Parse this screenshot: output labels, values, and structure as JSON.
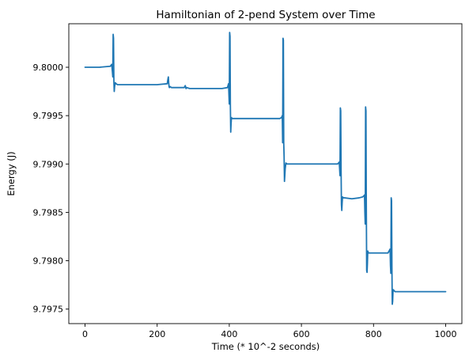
{
  "chart_data": {
    "type": "line",
    "title": "Hamiltonian of 2-pend System over Time",
    "xlabel": "Time (* 10^-2 seconds)",
    "ylabel": "Energy (J)",
    "xlim": [
      -45,
      1045
    ],
    "ylim": [
      9.79735,
      9.80045
    ],
    "x_ticks": [
      0,
      200,
      400,
      600,
      800,
      1000
    ],
    "x_tick_labels": [
      "0",
      "200",
      "400",
      "600",
      "800",
      "1000"
    ],
    "y_ticks": [
      9.7975,
      9.798,
      9.7985,
      9.799,
      9.7995,
      9.8
    ],
    "y_tick_labels": [
      "9.7975",
      "9.7980",
      "9.7985",
      "9.7990",
      "9.7995",
      "9.8000"
    ],
    "grid": false,
    "colors": {
      "line": "#1f77b4",
      "axes": "#000000",
      "background": "#ffffff"
    },
    "series": [
      {
        "color": "#1f77b4",
        "x": [
          0,
          40,
          70,
          74,
          76,
          77,
          78,
          79,
          80,
          81,
          82,
          84,
          86,
          90,
          100,
          150,
          200,
          228,
          230,
          231,
          232,
          233,
          234,
          236,
          240,
          260,
          275,
          278,
          280,
          282,
          290,
          320,
          380,
          395,
          398,
          400,
          401,
          402,
          403,
          404,
          405,
          406,
          408,
          412,
          420,
          480,
          540,
          545,
          547,
          548,
          549,
          550,
          551,
          552,
          553,
          554,
          555,
          557,
          560,
          570,
          600,
          660,
          700,
          703,
          705,
          706,
          707,
          708,
          709,
          710,
          711,
          712,
          713,
          714,
          716,
          720,
          740,
          760,
          770,
          773,
          775,
          776,
          777,
          778,
          779,
          780,
          781,
          782,
          783,
          784,
          786,
          790,
          810,
          830,
          840,
          843,
          846,
          847,
          848,
          849,
          850,
          851,
          852,
          853,
          854,
          855,
          857,
          860,
          880,
          920,
          960,
          1000
        ],
        "y": [
          9.8,
          9.8,
          9.80001,
          9.80003,
          9.79995,
          9.7999,
          9.80034,
          9.8003,
          9.79985,
          9.79975,
          9.7998,
          9.79984,
          9.79983,
          9.79982,
          9.79982,
          9.79982,
          9.79982,
          9.79983,
          9.79988,
          9.7999,
          9.79984,
          9.7998,
          9.79979,
          9.7998,
          9.79979,
          9.79979,
          9.79979,
          9.79981,
          9.79978,
          9.79979,
          9.79978,
          9.79978,
          9.79978,
          9.79979,
          9.79983,
          9.79962,
          9.80036,
          9.80032,
          9.79961,
          9.79933,
          9.79942,
          9.79948,
          9.79947,
          9.79947,
          9.79947,
          9.79947,
          9.79947,
          9.79948,
          9.7995,
          9.79922,
          9.8003,
          9.80028,
          9.79922,
          9.79908,
          9.79882,
          9.79888,
          9.79895,
          9.79901,
          9.799,
          9.799,
          9.799,
          9.799,
          9.799,
          9.79901,
          9.79902,
          9.79895,
          9.79888,
          9.79958,
          9.79955,
          9.79895,
          9.79858,
          9.79852,
          9.7986,
          9.79866,
          9.79865,
          9.79865,
          9.79864,
          9.79865,
          9.79866,
          9.79867,
          9.79868,
          9.7985,
          9.79838,
          9.79959,
          9.79955,
          9.79855,
          9.7979,
          9.79788,
          9.79797,
          9.7981,
          9.79808,
          9.79808,
          9.79808,
          9.79808,
          9.79808,
          9.7981,
          9.79812,
          9.79795,
          9.79787,
          9.79865,
          9.79862,
          9.79793,
          9.79755,
          9.79758,
          9.79768,
          9.7977,
          9.79769,
          9.79768,
          9.79768,
          9.79768,
          9.79768,
          9.79768
        ]
      }
    ]
  }
}
